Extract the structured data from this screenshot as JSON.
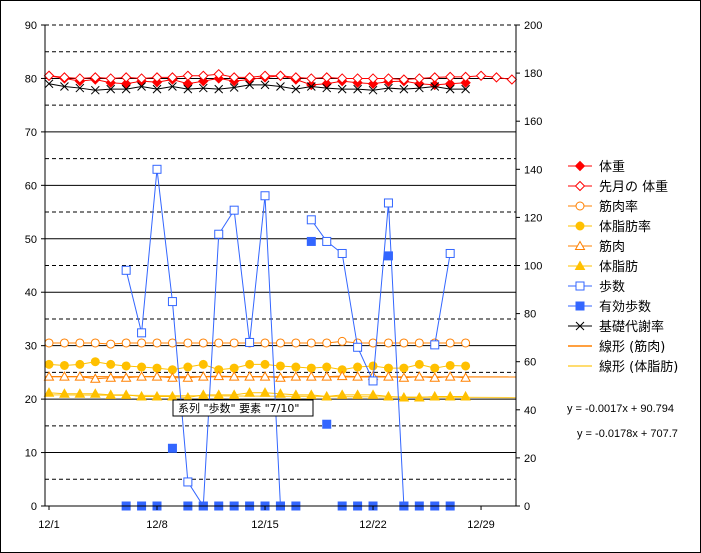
{
  "chart_data": {
    "type": "line",
    "x": [
      "12/1",
      "12/2",
      "12/3",
      "12/4",
      "12/5",
      "12/6",
      "12/7",
      "12/8",
      "12/9",
      "12/10",
      "12/11",
      "12/12",
      "12/13",
      "12/14",
      "12/15",
      "12/16",
      "12/17",
      "12/18",
      "12/19",
      "12/20",
      "12/21",
      "12/22",
      "12/23",
      "12/24",
      "12/25",
      "12/26",
      "12/27",
      "12/28",
      "12/29",
      "12/30",
      "12/31"
    ],
    "x_tick_labels": [
      "12/1",
      "12/8",
      "12/15",
      "12/22",
      "12/29"
    ],
    "x_tick_days": [
      1,
      8,
      15,
      22,
      29
    ],
    "y_left": {
      "ticks": [
        "0",
        "10",
        "20",
        "30",
        "40",
        "50",
        "60",
        "70",
        "80",
        "90"
      ],
      "range": [
        0,
        90
      ]
    },
    "y_right": {
      "ticks": [
        "0",
        "20",
        "40",
        "60",
        "80",
        "100",
        "120",
        "140",
        "160",
        "180",
        "200"
      ],
      "range": [
        0,
        200
      ]
    },
    "grid": "horizontal, solid at left-axis multiples of 10, dashed at odd multiples of 5",
    "legend_position": "right",
    "series": [
      {
        "name": "体重",
        "axis": "left",
        "color": "#ff0000",
        "marker": "diamond-filled",
        "values": [
          80.5,
          80.0,
          79.5,
          79.8,
          79.2,
          79.0,
          79.5,
          79.3,
          79.8,
          79.0,
          79.5,
          80.0,
          79.5,
          79.8,
          80.2,
          80.5,
          79.8,
          78.8,
          79.0,
          79.5,
          79.2,
          79.0,
          79.4,
          79.5,
          79.0,
          78.8,
          79.0,
          79.2,
          null,
          null,
          null
        ]
      },
      {
        "name": "先月の 体重",
        "axis": "left",
        "color": "#ff0000",
        "marker": "diamond-open",
        "values": [
          80.5,
          80.2,
          80.0,
          80.2,
          80.0,
          80.2,
          80.0,
          80.2,
          80.2,
          80.5,
          80.5,
          80.8,
          80.2,
          80.2,
          80.5,
          80.5,
          80.2,
          80.0,
          80.2,
          80.0,
          80.0,
          80.0,
          80.0,
          79.8,
          80.0,
          80.2,
          80.3,
          80.3,
          80.5,
          80.2,
          79.8
        ]
      },
      {
        "name": "筋肉率",
        "axis": "left",
        "color": "#ff8000",
        "marker": "circle-open",
        "values": [
          30.5,
          30.5,
          30.5,
          30.5,
          30.3,
          30.5,
          30.5,
          30.5,
          30.5,
          30.5,
          30.5,
          30.5,
          30.5,
          30.5,
          30.5,
          30.5,
          30.5,
          30.5,
          30.5,
          30.8,
          30.5,
          30.5,
          30.5,
          30.5,
          30.5,
          30.5,
          30.5,
          30.5,
          null,
          null,
          null
        ]
      },
      {
        "name": "体脂肪率",
        "axis": "left",
        "color": "#ffc000",
        "marker": "circle-filled",
        "values": [
          26.5,
          26.3,
          26.5,
          27.0,
          26.5,
          26.2,
          26.0,
          25.8,
          25.5,
          26.0,
          26.5,
          25.5,
          25.8,
          26.5,
          26.5,
          26.2,
          26.0,
          25.8,
          26.0,
          25.5,
          26.0,
          26.2,
          25.8,
          25.8,
          26.5,
          25.8,
          26.3,
          26.2,
          null,
          null,
          null
        ]
      },
      {
        "name": "筋肉",
        "axis": "left",
        "color": "#ff8000",
        "marker": "triangle-open",
        "values": [
          24.2,
          24.2,
          24.2,
          23.8,
          24.0,
          24.0,
          24.2,
          24.2,
          24.0,
          24.0,
          24.2,
          24.3,
          24.2,
          24.2,
          24.2,
          24.0,
          24.2,
          24.2,
          24.2,
          24.3,
          24.2,
          24.3,
          24.2,
          24.0,
          24.2,
          24.0,
          24.2,
          24.0,
          null,
          null,
          null
        ]
      },
      {
        "name": "体脂肪",
        "axis": "left",
        "color": "#ffc000",
        "marker": "triangle-filled",
        "values": [
          21.2,
          21.0,
          21.0,
          21.0,
          20.8,
          20.8,
          20.5,
          20.5,
          20.5,
          20.3,
          20.8,
          20.8,
          20.8,
          21.2,
          21.2,
          21.0,
          20.8,
          20.8,
          20.5,
          20.8,
          20.8,
          20.8,
          20.5,
          20.3,
          20.3,
          20.5,
          20.5,
          20.5,
          null,
          null,
          null
        ]
      },
      {
        "name": "歩数",
        "axis": "right",
        "color": "#3366ff",
        "marker": "square-open",
        "values": [
          null,
          null,
          null,
          null,
          null,
          98,
          72,
          140,
          85,
          10,
          0,
          113,
          123,
          68,
          129,
          0,
          null,
          119,
          110,
          105,
          66,
          52,
          126,
          0,
          null,
          67,
          105,
          null,
          null,
          null,
          null
        ]
      },
      {
        "name": "有効歩数",
        "axis": "right",
        "color": "#3366ff",
        "marker": "square-filled",
        "values": [
          null,
          null,
          null,
          null,
          null,
          0,
          0,
          0,
          24,
          0,
          0,
          0,
          0,
          0,
          0,
          0,
          0,
          110,
          34,
          0,
          0,
          0,
          104,
          0,
          0,
          0,
          0,
          null,
          null,
          null,
          null
        ]
      },
      {
        "name": "基礎代謝率",
        "axis": "left",
        "color": "#000000",
        "marker": "x",
        "values": [
          79.0,
          78.5,
          78.2,
          77.8,
          78.0,
          78.0,
          78.5,
          78.0,
          78.5,
          78.0,
          78.2,
          78.0,
          78.3,
          78.8,
          78.8,
          78.5,
          78.0,
          78.5,
          78.2,
          78.0,
          78.0,
          77.8,
          78.2,
          78.0,
          78.2,
          78.5,
          78.0,
          78.0,
          null,
          null,
          null
        ]
      },
      {
        "name": "線形 (筋肉)",
        "axis": "left",
        "color": "#ff8000",
        "marker": "none",
        "trend": {
          "slope": -0.0017,
          "intercept": 24.2
        }
      },
      {
        "name": "線形 (体脂肪)",
        "axis": "left",
        "color": "#ffd040",
        "marker": "none",
        "trend": {
          "slope": -0.0178,
          "intercept": 20.8
        }
      }
    ],
    "annotations": {
      "equation_1": "y = -0.0017x + 90.794",
      "equation_2": "y = -0.0178x + 707.7",
      "tooltip": "系列 \"歩数\" 要素 \"7/10\""
    }
  }
}
